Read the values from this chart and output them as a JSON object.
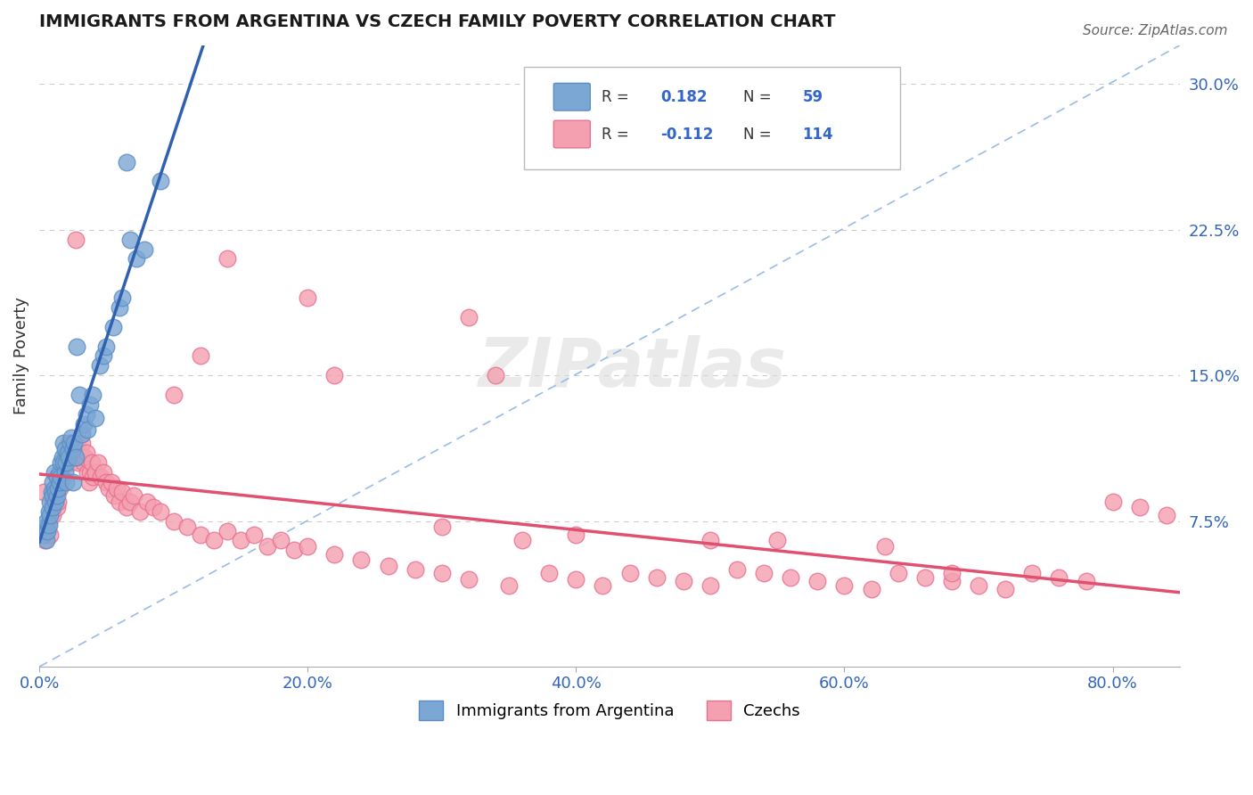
{
  "title": "IMMIGRANTS FROM ARGENTINA VS CZECH FAMILY POVERTY CORRELATION CHART",
  "source": "Source: ZipAtlas.com",
  "ylabel": "Family Poverty",
  "x_tick_labels": [
    "0.0%",
    "20.0%",
    "40.0%",
    "60.0%",
    "80.0%"
  ],
  "x_tick_positions": [
    0.0,
    0.2,
    0.4,
    0.6,
    0.8
  ],
  "y_tick_labels": [
    "7.5%",
    "15.0%",
    "22.5%",
    "30.0%"
  ],
  "y_tick_positions": [
    0.075,
    0.15,
    0.225,
    0.3
  ],
  "xlim": [
    0.0,
    0.85
  ],
  "ylim": [
    0.0,
    0.32
  ],
  "argentina_color": "#7BA7D4",
  "czech_color": "#F4A0B0",
  "argentina_edge": "#5B8DC4",
  "czech_edge": "#E87090",
  "regression_line_argentina_color": "#3060B0",
  "regression_line_czech_color": "#E05070",
  "diagonal_line_color": "#9abce8",
  "watermark": "ZIPatlas",
  "legend_r_argentina": "0.182",
  "legend_n_argentina": "59",
  "legend_r_czech": "-0.112",
  "legend_n_czech": "114",
  "argentina_x": [
    0.003,
    0.004,
    0.005,
    0.005,
    0.006,
    0.007,
    0.007,
    0.008,
    0.008,
    0.009,
    0.01,
    0.01,
    0.01,
    0.011,
    0.011,
    0.012,
    0.012,
    0.013,
    0.013,
    0.014,
    0.015,
    0.015,
    0.016,
    0.016,
    0.017,
    0.018,
    0.018,
    0.019,
    0.019,
    0.02,
    0.02,
    0.021,
    0.022,
    0.023,
    0.024,
    0.025,
    0.025,
    0.026,
    0.027,
    0.028,
    0.03,
    0.032,
    0.033,
    0.035,
    0.036,
    0.038,
    0.04,
    0.042,
    0.045,
    0.048,
    0.05,
    0.055,
    0.06,
    0.062,
    0.065,
    0.068,
    0.072,
    0.078,
    0.09
  ],
  "argentina_y": [
    0.068,
    0.072,
    0.075,
    0.065,
    0.07,
    0.08,
    0.073,
    0.085,
    0.078,
    0.09,
    0.095,
    0.088,
    0.082,
    0.1,
    0.092,
    0.09,
    0.085,
    0.098,
    0.088,
    0.092,
    0.1,
    0.095,
    0.105,
    0.098,
    0.108,
    0.115,
    0.105,
    0.112,
    0.1,
    0.105,
    0.095,
    0.11,
    0.108,
    0.115,
    0.118,
    0.112,
    0.095,
    0.115,
    0.108,
    0.165,
    0.14,
    0.12,
    0.125,
    0.13,
    0.122,
    0.135,
    0.14,
    0.128,
    0.155,
    0.16,
    0.165,
    0.175,
    0.185,
    0.19,
    0.26,
    0.22,
    0.21,
    0.215,
    0.25
  ],
  "czech_x": [
    0.003,
    0.004,
    0.005,
    0.006,
    0.007,
    0.008,
    0.009,
    0.01,
    0.01,
    0.011,
    0.012,
    0.013,
    0.014,
    0.015,
    0.015,
    0.016,
    0.017,
    0.018,
    0.019,
    0.02,
    0.021,
    0.022,
    0.023,
    0.024,
    0.025,
    0.026,
    0.027,
    0.028,
    0.029,
    0.03,
    0.031,
    0.032,
    0.033,
    0.034,
    0.035,
    0.036,
    0.037,
    0.038,
    0.039,
    0.04,
    0.042,
    0.044,
    0.046,
    0.048,
    0.05,
    0.052,
    0.054,
    0.056,
    0.058,
    0.06,
    0.062,
    0.065,
    0.068,
    0.07,
    0.075,
    0.08,
    0.085,
    0.09,
    0.1,
    0.11,
    0.12,
    0.13,
    0.14,
    0.15,
    0.16,
    0.17,
    0.18,
    0.19,
    0.2,
    0.22,
    0.24,
    0.26,
    0.28,
    0.3,
    0.32,
    0.35,
    0.38,
    0.4,
    0.42,
    0.44,
    0.46,
    0.48,
    0.5,
    0.52,
    0.54,
    0.56,
    0.58,
    0.6,
    0.62,
    0.64,
    0.66,
    0.68,
    0.7,
    0.72,
    0.74,
    0.76,
    0.78,
    0.8,
    0.82,
    0.84,
    0.1,
    0.12,
    0.14,
    0.22,
    0.32,
    0.34,
    0.36,
    0.55,
    0.63,
    0.5,
    0.4,
    0.3,
    0.2,
    0.68
  ],
  "czech_y": [
    0.09,
    0.065,
    0.07,
    0.072,
    0.075,
    0.068,
    0.08,
    0.085,
    0.078,
    0.088,
    0.09,
    0.082,
    0.085,
    0.092,
    0.095,
    0.1,
    0.098,
    0.105,
    0.108,
    0.11,
    0.112,
    0.115,
    0.105,
    0.11,
    0.108,
    0.112,
    0.22,
    0.115,
    0.105,
    0.11,
    0.108,
    0.115,
    0.105,
    0.108,
    0.11,
    0.1,
    0.095,
    0.1,
    0.105,
    0.098,
    0.1,
    0.105,
    0.098,
    0.1,
    0.095,
    0.092,
    0.095,
    0.088,
    0.092,
    0.085,
    0.09,
    0.082,
    0.085,
    0.088,
    0.08,
    0.085,
    0.082,
    0.08,
    0.075,
    0.072,
    0.068,
    0.065,
    0.07,
    0.065,
    0.068,
    0.062,
    0.065,
    0.06,
    0.062,
    0.058,
    0.055,
    0.052,
    0.05,
    0.048,
    0.045,
    0.042,
    0.048,
    0.045,
    0.042,
    0.048,
    0.046,
    0.044,
    0.042,
    0.05,
    0.048,
    0.046,
    0.044,
    0.042,
    0.04,
    0.048,
    0.046,
    0.044,
    0.042,
    0.04,
    0.048,
    0.046,
    0.044,
    0.085,
    0.082,
    0.078,
    0.14,
    0.16,
    0.21,
    0.15,
    0.18,
    0.15,
    0.065,
    0.065,
    0.062,
    0.065,
    0.068,
    0.072,
    0.19,
    0.048
  ]
}
